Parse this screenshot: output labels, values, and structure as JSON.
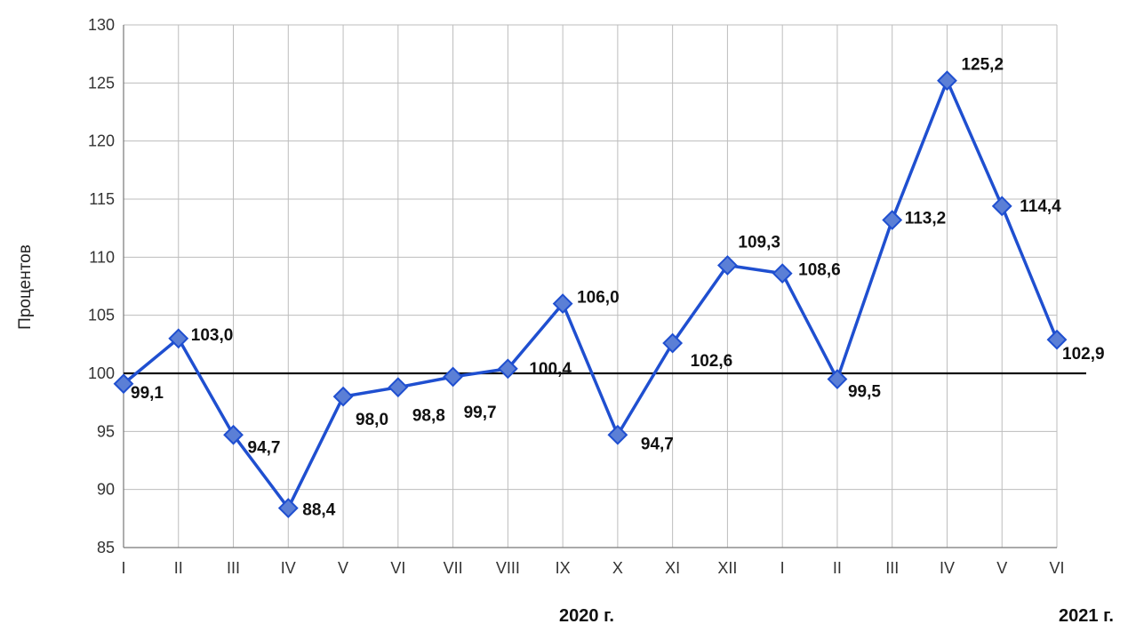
{
  "chart_data": {
    "type": "line",
    "title": "",
    "xlabel": "",
    "ylabel": "Процентов",
    "ylim": [
      85,
      130
    ],
    "yticks": [
      85,
      90,
      95,
      100,
      105,
      110,
      115,
      120,
      125,
      130
    ],
    "grid": true,
    "reference_line": 100,
    "year_labels": [
      "2020 г.",
      "2021 г."
    ],
    "categories": [
      "I",
      "II",
      "III",
      "IV",
      "V",
      "VI",
      "VII",
      "VIII",
      "IX",
      "X",
      "XI",
      "XII",
      "I",
      "II",
      "III",
      "IV",
      "V",
      "VI"
    ],
    "series": [
      {
        "values": [
          99.1,
          103.0,
          94.7,
          88.4,
          98.0,
          98.8,
          99.7,
          100.4,
          106.0,
          94.7,
          102.6,
          109.3,
          108.6,
          99.5,
          113.2,
          125.2,
          114.4,
          102.9
        ],
        "labels": [
          "99,1",
          "103,0",
          "94,7",
          "88,4",
          "98,0",
          "98,8",
          "99,7",
          "100,4",
          "106,0",
          "94,7",
          "102,6",
          "109,3",
          "108,6",
          "99,5",
          "113,2",
          "125,2",
          "114,4",
          "102,9"
        ],
        "color": "#1F4FD0",
        "marker_color": "#5B7FD6"
      }
    ]
  }
}
